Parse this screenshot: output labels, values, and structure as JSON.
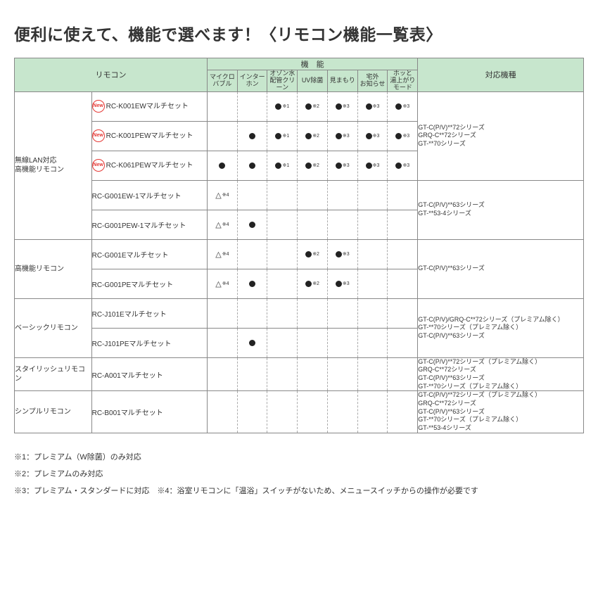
{
  "title": "便利に使えて、機能で選べます！〈リモコン機能一覧表〉",
  "headers": {
    "remote": "リモコン",
    "features": "機　能",
    "models": "対応機種",
    "featCols": [
      "マイクロ\nバブル",
      "インター\nホン",
      "オゾン水\n配管クリーン",
      "UV除菌",
      "見まもり",
      "宅外\nお知らせ",
      "ホッと\n湯上がり\nモード"
    ]
  },
  "newLabel": "New",
  "categories": [
    {
      "name": "無線LAN対応\n高機能リモコン",
      "rows": [
        {
          "new": true,
          "product": "RC-K001EWマルチセット",
          "feats": [
            "",
            "",
            "●※1",
            "●※2",
            "●※3",
            "●※3",
            "●※3"
          ]
        },
        {
          "new": true,
          "product": "RC-K001PEWマルチセット",
          "feats": [
            "",
            "●",
            "●※1",
            "●※2",
            "●※3",
            "●※3",
            "●※3"
          ]
        },
        {
          "new": true,
          "product": "RC-K061PEWマルチセット",
          "feats": [
            "●",
            "●",
            "●※1",
            "●※2",
            "●※3",
            "●※3",
            "●※3"
          ]
        },
        {
          "new": false,
          "product": "RC-G001EW-1マルチセット",
          "feats": [
            "△※4",
            "",
            "",
            "",
            "",
            "",
            ""
          ]
        },
        {
          "new": false,
          "product": "RC-G001PEW-1マルチセット",
          "feats": [
            "△※4",
            "●",
            "",
            "",
            "",
            "",
            ""
          ]
        }
      ],
      "modelGroups": [
        {
          "span": 3,
          "text": "GT-C(P/V)**72シリーズ\nGRQ-C**72シリーズ\nGT-**70シリーズ"
        },
        {
          "span": 2,
          "text": "GT-C(P/V)**63シリーズ\nGT-**53-4シリーズ"
        }
      ]
    },
    {
      "name": "高機能リモコン",
      "rows": [
        {
          "new": false,
          "product": "RC-G001Eマルチセット",
          "feats": [
            "△※4",
            "",
            "",
            "●※2",
            "●※3",
            "",
            ""
          ]
        },
        {
          "new": false,
          "product": "RC-G001PEマルチセット",
          "feats": [
            "△※4",
            "●",
            "",
            "●※2",
            "●※3",
            "",
            ""
          ]
        }
      ],
      "modelGroups": [
        {
          "span": 2,
          "text": "GT-C(P/V)**63シリーズ"
        }
      ]
    },
    {
      "name": "ベーシックリモコン",
      "rows": [
        {
          "new": false,
          "product": "RC-J101Eマルチセット",
          "feats": [
            "",
            "",
            "",
            "",
            "",
            "",
            ""
          ]
        },
        {
          "new": false,
          "product": "RC-J101PEマルチセット",
          "feats": [
            "",
            "●",
            "",
            "",
            "",
            "",
            ""
          ]
        }
      ],
      "modelGroups": [
        {
          "span": 2,
          "text": "GT-C(P/V)/GRQ-C**72シリーズ（プレミアム除く）\nGT-**70シリーズ（プレミアム除く）\nGT-C(P/V)**63シリーズ"
        }
      ]
    },
    {
      "name": "スタイリッシュリモコン",
      "rows": [
        {
          "new": false,
          "product": "RC-A001マルチセット",
          "feats": [
            "",
            "",
            "",
            "",
            "",
            "",
            ""
          ]
        }
      ],
      "modelGroups": [
        {
          "span": 1,
          "text": "GT-C(P/V)**72シリーズ（プレミアム除く）\nGRQ-C**72シリーズ\nGT-C(P/V)**63シリーズ\nGT-**70シリーズ（プレミアム除く）"
        }
      ]
    },
    {
      "name": "シンプルリモコン",
      "rows": [
        {
          "new": false,
          "product": "RC-B001マルチセット",
          "feats": [
            "",
            "",
            "",
            "",
            "",
            "",
            ""
          ]
        }
      ],
      "modelGroups": [
        {
          "span": 1,
          "text": "GT-C(P/V)**72シリーズ（プレミアム除く）\nGRQ-C**72シリーズ\nGT-C(P/V)**63シリーズ\nGT-**70シリーズ（プレミアム除く）\nGT-**53-4シリーズ"
        }
      ]
    }
  ],
  "footnotes": [
    "※1：プレミアム（W除菌）のみ対応",
    "※2：プレミアムのみ対応",
    "※3：プレミアム・スタンダードに対応　※4：浴室リモコンに「温浴」スイッチがないため、メニュースイッチからの操作が必要です"
  ],
  "style": {
    "headerBg": "#c7e6cd",
    "border": "#888888",
    "dashed": "#aaaaaa",
    "newColor": "#e53935",
    "text": "#333333",
    "bg": "#ffffff"
  }
}
